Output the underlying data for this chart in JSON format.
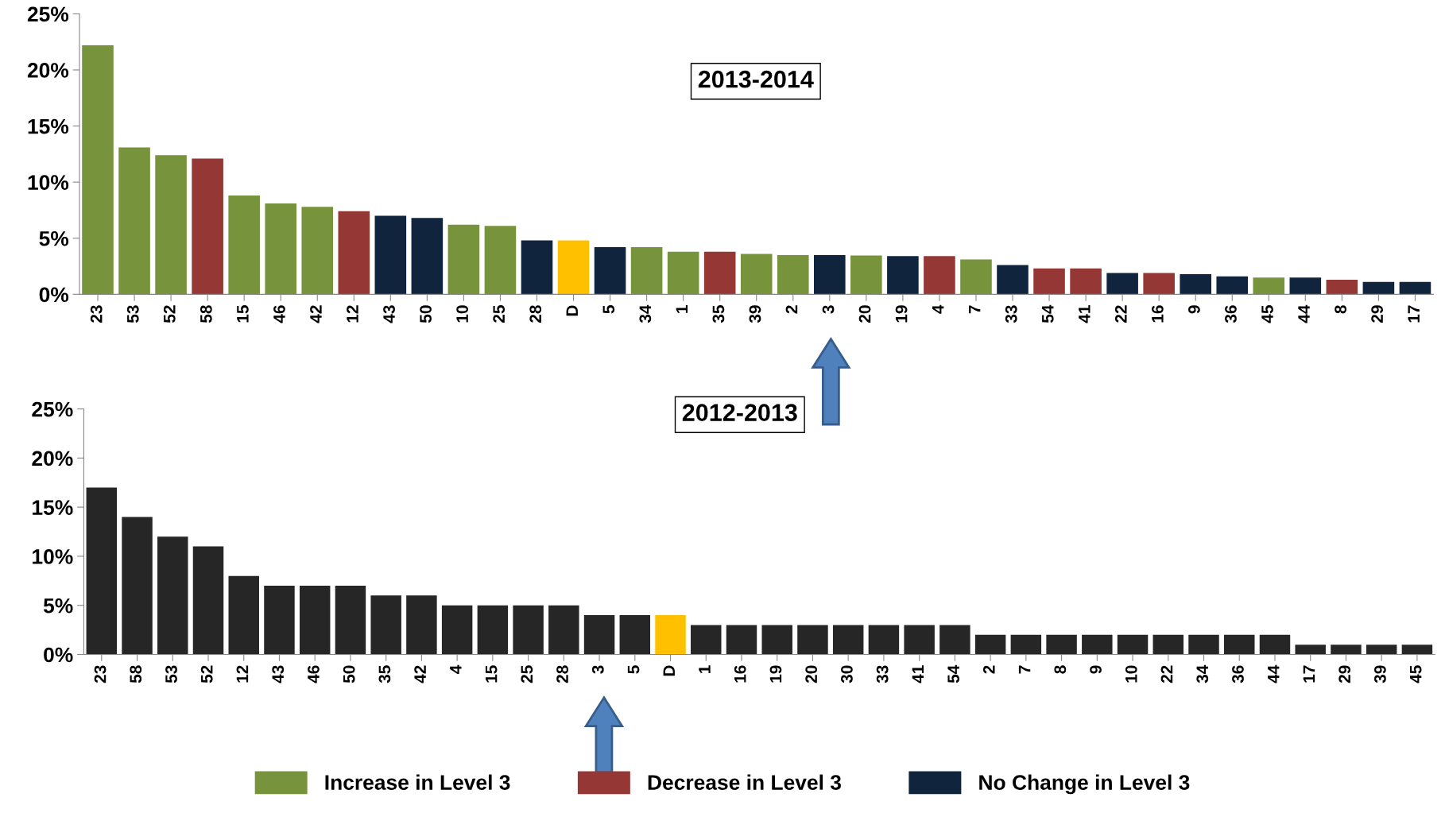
{
  "chart_data": [
    {
      "type": "bar",
      "annotations": [
        "2013-2014"
      ],
      "categories": [
        "23",
        "53",
        "52",
        "58",
        "15",
        "46",
        "42",
        "12",
        "43",
        "50",
        "10",
        "25",
        "28",
        "D",
        "5",
        "34",
        "1",
        "35",
        "39",
        "2",
        "3",
        "20",
        "19",
        "4",
        "7",
        "33",
        "54",
        "41",
        "22",
        "16",
        "9",
        "36",
        "45",
        "44",
        "8",
        "29",
        "17"
      ],
      "series": [
        {
          "name": "Increase in Level 3",
          "color": "#77933c",
          "values": [
            22.2,
            13.1,
            12.4,
            null,
            8.8,
            8.1,
            7.8,
            null,
            null,
            null,
            6.2,
            6.1,
            null,
            null,
            null,
            4.2,
            3.8,
            null,
            3.6,
            3.5,
            null,
            3.45,
            null,
            null,
            3.1,
            null,
            null,
            null,
            null,
            null,
            null,
            null,
            1.5,
            null,
            null,
            null,
            null
          ]
        },
        {
          "name": "Decrease in Level 3",
          "color": "#953735",
          "values": [
            null,
            null,
            null,
            12.1,
            null,
            null,
            null,
            7.4,
            null,
            null,
            null,
            null,
            null,
            null,
            null,
            null,
            null,
            3.8,
            null,
            null,
            null,
            null,
            null,
            3.4,
            null,
            null,
            2.3,
            2.3,
            null,
            1.9,
            null,
            null,
            null,
            null,
            1.3,
            null,
            null
          ]
        },
        {
          "name": "No Change in Level 3",
          "color": "#10243e",
          "values": [
            null,
            null,
            null,
            null,
            null,
            null,
            null,
            null,
            7.0,
            6.8,
            null,
            null,
            4.8,
            null,
            4.2,
            null,
            null,
            null,
            null,
            null,
            3.5,
            null,
            3.4,
            null,
            null,
            2.6,
            null,
            null,
            1.9,
            null,
            1.8,
            1.6,
            null,
            1.5,
            null,
            1.1,
            1.1
          ]
        },
        {
          "color": "#ffc000",
          "values": [
            null,
            null,
            null,
            null,
            null,
            null,
            null,
            null,
            null,
            null,
            null,
            null,
            null,
            4.8,
            null,
            null,
            null,
            null,
            null,
            null,
            null,
            null,
            null,
            null,
            null,
            null,
            null,
            null,
            null,
            null,
            null,
            null,
            null,
            null,
            null,
            null,
            null
          ]
        }
      ],
      "ylim": [
        0,
        25
      ],
      "yticks": [
        {
          "value": 0,
          "label": "0%"
        },
        {
          "value": 5,
          "label": "5%"
        },
        {
          "value": 10,
          "label": "10%"
        },
        {
          "value": 15,
          "label": "15%"
        },
        {
          "value": 20,
          "label": "20%"
        },
        {
          "value": 25,
          "label": "25%"
        }
      ],
      "grid": false,
      "legend": "bottom"
    },
    {
      "type": "bar",
      "annotations": [
        "2012-2013"
      ],
      "categories": [
        "23",
        "58",
        "53",
        "52",
        "12",
        "43",
        "46",
        "50",
        "35",
        "42",
        "4",
        "15",
        "25",
        "28",
        "3",
        "5",
        "D",
        "1",
        "16",
        "19",
        "20",
        "30",
        "33",
        "41",
        "54",
        "2",
        "7",
        "8",
        "9",
        "10",
        "22",
        "34",
        "36",
        "44",
        "17",
        "29",
        "39",
        "45"
      ],
      "values": [
        17,
        14,
        12,
        11,
        8,
        7,
        7,
        7,
        6,
        6,
        5,
        5,
        5,
        5,
        4,
        4,
        4,
        3,
        3,
        3,
        3,
        3,
        3,
        3,
        3,
        2,
        2,
        2,
        2,
        2,
        2,
        2,
        2,
        2,
        1,
        1,
        1,
        1
      ],
      "colors": [
        "#262626",
        "#262626",
        "#262626",
        "#262626",
        "#262626",
        "#262626",
        "#262626",
        "#262626",
        "#262626",
        "#262626",
        "#262626",
        "#262626",
        "#262626",
        "#262626",
        "#262626",
        "#262626",
        "#ffc000",
        "#262626",
        "#262626",
        "#262626",
        "#262626",
        "#262626",
        "#262626",
        "#262626",
        "#262626",
        "#262626",
        "#262626",
        "#262626",
        "#262626",
        "#262626",
        "#262626",
        "#262626",
        "#262626",
        "#262626",
        "#262626",
        "#262626",
        "#262626",
        "#262626"
      ],
      "ylim": [
        0,
        25
      ],
      "yticks": [
        {
          "value": 0,
          "label": "0%"
        },
        {
          "value": 5,
          "label": "5%"
        },
        {
          "value": 10,
          "label": "10%"
        },
        {
          "value": 15,
          "label": "15%"
        },
        {
          "value": 20,
          "label": "20%"
        },
        {
          "value": 25,
          "label": "25%"
        }
      ],
      "grid": false
    }
  ]
}
